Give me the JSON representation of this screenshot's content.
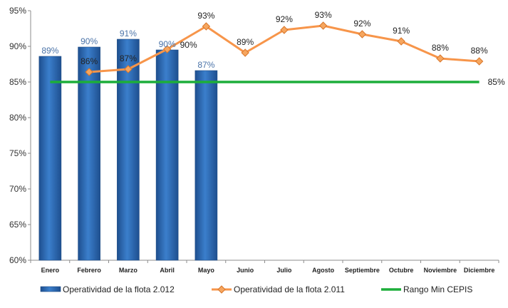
{
  "chart_data": {
    "type": "bar",
    "title": "",
    "xlabel": "",
    "ylabel": "",
    "ylim": [
      60,
      95
    ],
    "y_ticks": [
      "60%",
      "65%",
      "70%",
      "75%",
      "80%",
      "85%",
      "90%",
      "95%"
    ],
    "y_tick_values": [
      60,
      65,
      70,
      75,
      80,
      85,
      90,
      95
    ],
    "categories": [
      "Enero",
      "Febrero",
      "Marzo",
      "Abril",
      "Mayo",
      "Junio",
      "Julio",
      "Agosto",
      "Septiembre",
      "Octubre",
      "Noviembre",
      "Diciembre"
    ],
    "grid": false,
    "legend_position": "bottom",
    "series": [
      {
        "name": "Operatividad de la flota 2.012",
        "kind": "bar",
        "color": "#2E6DB4",
        "label_color": "#4A73A8",
        "values": [
          88.6,
          89.9,
          91.0,
          89.5,
          86.6,
          null,
          null,
          null,
          null,
          null,
          null,
          null
        ],
        "data_labels": [
          "89%",
          "90%",
          "91%",
          "90%",
          "87%",
          null,
          null,
          null,
          null,
          null,
          null,
          null
        ]
      },
      {
        "name": "Operatividad de la flota 2.011",
        "kind": "line",
        "color": "#F7954A",
        "marker": "diamond",
        "values": [
          null,
          86.4,
          86.8,
          89.6,
          92.8,
          89.1,
          92.3,
          92.9,
          91.7,
          90.7,
          88.3,
          87.9
        ],
        "data_labels": [
          null,
          "86%",
          "87%",
          "90%",
          "93%",
          "89%",
          "92%",
          "93%",
          "92%",
          "91%",
          "88%",
          "88%"
        ]
      },
      {
        "name": "Rango Min CEPIS",
        "kind": "line",
        "color": "#1DAE3A",
        "value": 85,
        "data_label": "85%"
      }
    ]
  }
}
